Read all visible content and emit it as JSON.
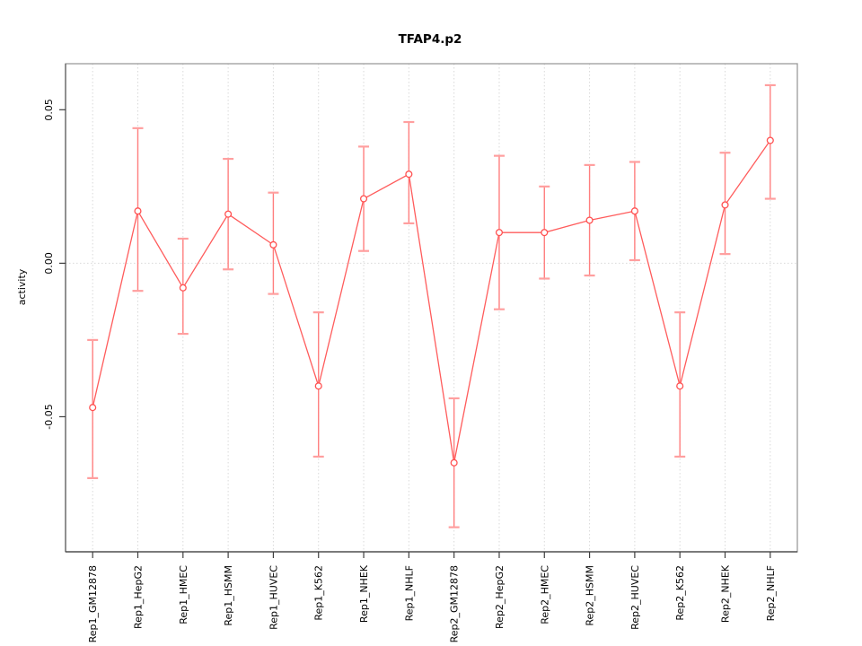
{
  "chart_data": {
    "type": "line",
    "title": "TFAP4.p2",
    "ylabel": "activity",
    "xlabel": "",
    "categories": [
      "Rep1_GM12878",
      "Rep1_HepG2",
      "Rep1_HMEC",
      "Rep1_HSMM",
      "Rep1_HUVEC",
      "Rep1_K562",
      "Rep1_NHEK",
      "Rep1_NHLF",
      "Rep2_GM12878",
      "Rep2_HepG2",
      "Rep2_HMEC",
      "Rep2_HSMM",
      "Rep2_HUVEC",
      "Rep2_K562",
      "Rep2_NHEK",
      "Rep2_NHLF"
    ],
    "values": [
      -0.047,
      0.017,
      -0.008,
      0.016,
      0.006,
      -0.04,
      0.021,
      0.029,
      -0.065,
      0.01,
      0.01,
      0.014,
      0.017,
      -0.04,
      0.019,
      0.04
    ],
    "upper": [
      -0.025,
      0.044,
      0.008,
      0.034,
      0.023,
      -0.016,
      0.038,
      0.046,
      -0.044,
      0.035,
      0.025,
      0.032,
      0.033,
      -0.016,
      0.036,
      0.058
    ],
    "lower": [
      -0.07,
      -0.009,
      -0.023,
      -0.002,
      -0.01,
      -0.063,
      0.004,
      0.013,
      -0.086,
      -0.015,
      -0.005,
      -0.004,
      0.001,
      -0.063,
      0.003,
      0.021
    ],
    "error_bars": true,
    "marker": "open-circle",
    "yticks": [
      {
        "label": "0.05",
        "value": 0.05
      },
      {
        "label": "0.00",
        "value": 0.0
      },
      {
        "label": "-0.05",
        "value": -0.05
      }
    ],
    "ylim": [
      -0.094,
      0.065
    ],
    "xlim": [
      0.4,
      16.6
    ],
    "grid": "dotted vertical line per category and dotted horizontal line at y=0",
    "legend": "none",
    "colors": {
      "series": "#ff5c5c",
      "point_stroke": "#ff5151",
      "error_bar": "#ff7f7f",
      "error_cap": "#ff9f9f",
      "grid": "#d9d9d9",
      "box": "#9b9b9b",
      "axis": "#3f3f3f",
      "background": "#ffffff"
    }
  }
}
